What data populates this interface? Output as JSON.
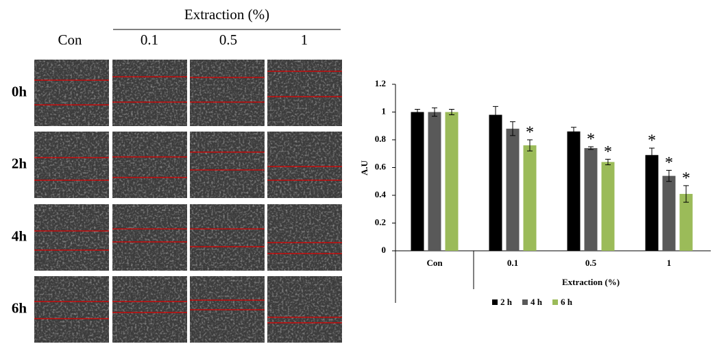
{
  "panel": {
    "header": "Extraction (%)",
    "columns": [
      "Con",
      "0.1",
      "0.5",
      "1"
    ],
    "rows": [
      "0h",
      "2h",
      "4h",
      "6h"
    ]
  },
  "chart_data": {
    "type": "bar",
    "ylabel": "A.U",
    "xlabel": "Extraction (%)",
    "categories": [
      "Con",
      "0.1",
      "0.5",
      "1"
    ],
    "series": [
      {
        "name": "2 h",
        "color": "#000000",
        "values": [
          1.0,
          0.98,
          0.86,
          0.69
        ],
        "errors": [
          0.02,
          0.06,
          0.03,
          0.05
        ],
        "significance": [
          null,
          null,
          null,
          "*"
        ]
      },
      {
        "name": "4 h",
        "color": "#595959",
        "values": [
          1.0,
          0.88,
          0.74,
          0.54
        ],
        "errors": [
          0.03,
          0.05,
          0.01,
          0.04
        ],
        "significance": [
          null,
          null,
          "*",
          "*"
        ]
      },
      {
        "name": "6 h",
        "color": "#9bbb59",
        "values": [
          1.0,
          0.76,
          0.64,
          0.41
        ],
        "errors": [
          0.02,
          0.04,
          0.02,
          0.06
        ],
        "significance": [
          null,
          "*",
          "*",
          "*"
        ]
      }
    ],
    "ylim": [
      0,
      1.2
    ],
    "yticks": [
      0,
      0.2,
      0.4,
      0.6,
      0.8,
      1,
      1.2
    ],
    "grid": false,
    "legend": "bottom"
  }
}
